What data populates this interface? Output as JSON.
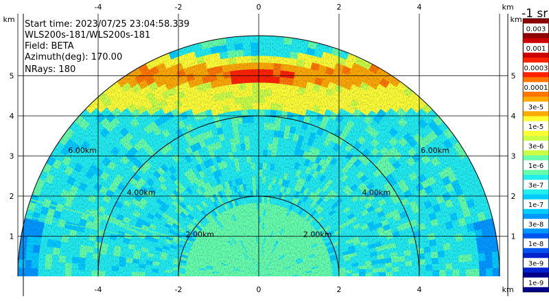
{
  "chart_data": {
    "type": "heatmap",
    "subtype": "lidar-ppi-scan",
    "info": {
      "start_time": "Start time: 2023/07/25 23:04:58.339",
      "instrument": "WLS200s-181/WLS200s-181",
      "field": "Field: BETA",
      "azimuth": "Azimuth(deg): 170.00",
      "nrays": "NRays: 180"
    },
    "x_axis": {
      "unit": "km",
      "ticks": [
        -4,
        -2,
        0,
        2,
        4
      ],
      "range": [
        -6.0,
        6.0
      ]
    },
    "y_axis": {
      "unit": "km",
      "ticks": [
        1,
        2,
        3,
        4,
        5
      ],
      "range": [
        0,
        6.0
      ]
    },
    "range_rings_km": [
      2,
      4,
      6
    ],
    "range_ring_labels": [
      "2.00km",
      "4.00km",
      "6.00km"
    ],
    "max_range_km": 6.0,
    "colorbar": {
      "title": "-1 sr",
      "labels": [
        "0.003",
        "0.001",
        "0.0003",
        "0.0001",
        "3e-5",
        "1e-5",
        "3e-6",
        "1e-6",
        "3e-7",
        "1e-7",
        "3e-8",
        "1e-8",
        "3e-9",
        "1e-9"
      ],
      "colors": [
        "#8b0000",
        "#cc0000",
        "#ff2200",
        "#ff7700",
        "#ffaa00",
        "#ffff33",
        "#ccff44",
        "#66ffaa",
        "#22eeee",
        "#00ccff",
        "#0099ff",
        "#0055ee",
        "#0022cc",
        "#000088"
      ]
    },
    "features": {
      "high_backscatter_band_km": 5.0,
      "aerosol_layer_range_km": [
        4.1,
        5.5
      ],
      "near_field_range_km": 1.8
    }
  }
}
